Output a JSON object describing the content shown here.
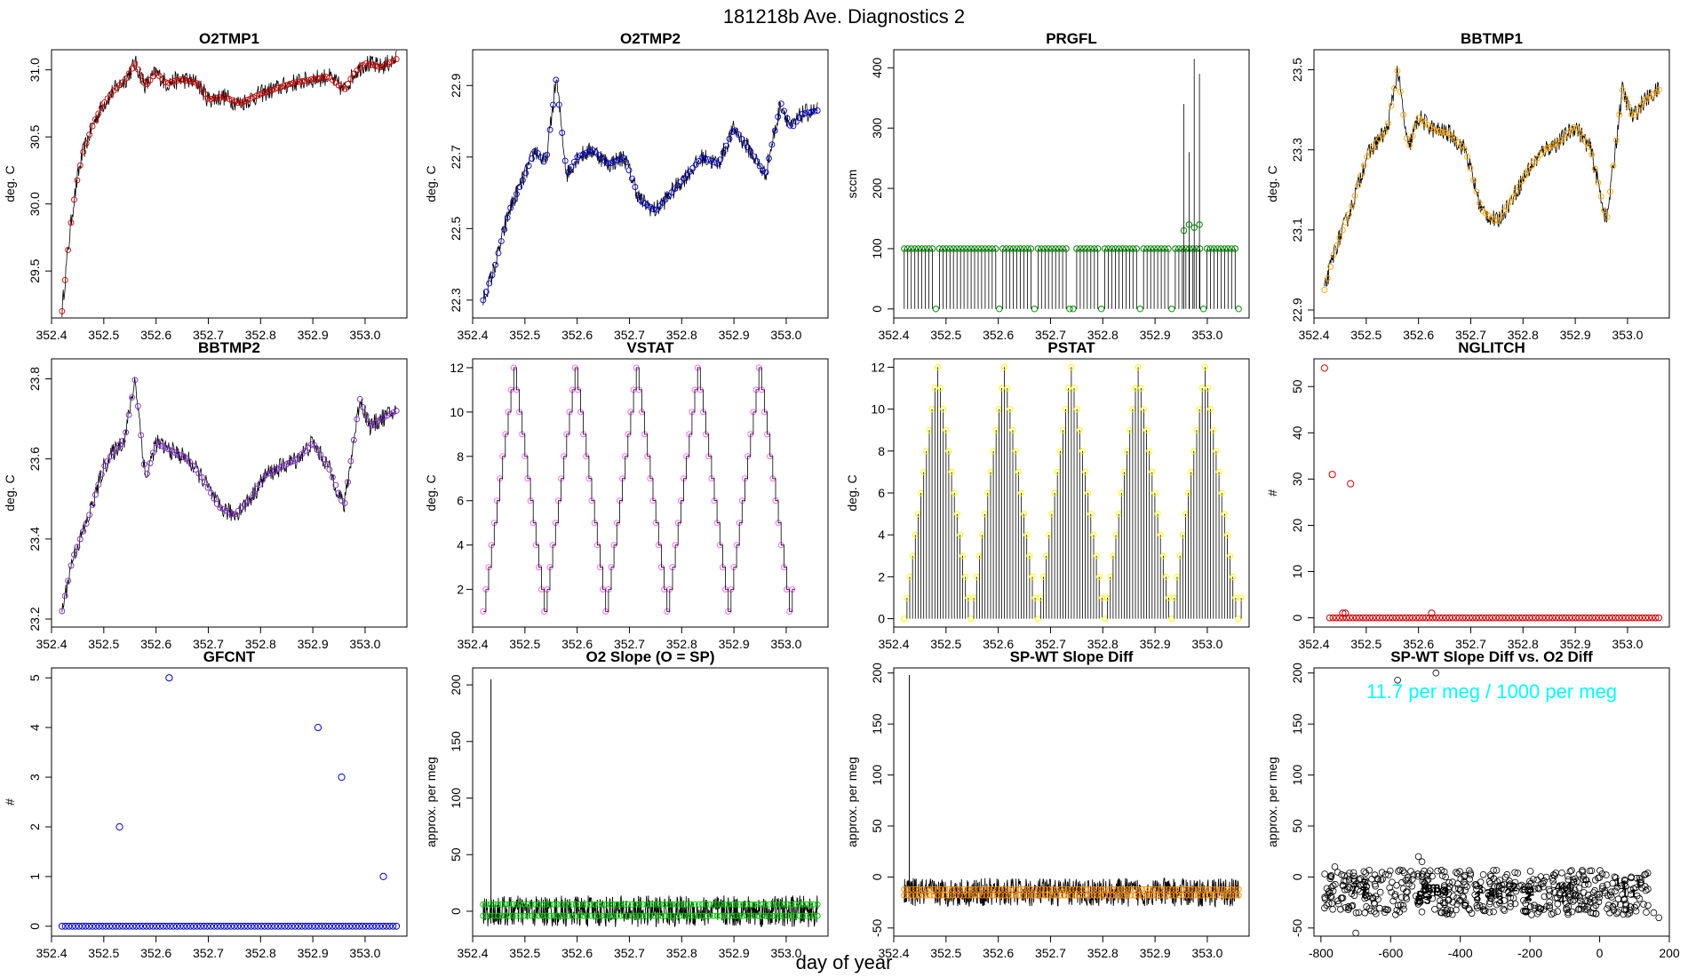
{
  "figure": {
    "title": "181218b   Ave. Diagnostics 2",
    "xlabel": "day of year"
  },
  "chart_data": [
    {
      "id": "o2tmp1",
      "type": "line",
      "title": "O2TMP1",
      "ylabel": "deg. C",
      "color": "#cc0000",
      "xlim": [
        352.4,
        353.08
      ],
      "ylim": [
        29.15,
        31.15
      ],
      "xticks": [
        352.4,
        352.5,
        352.6,
        352.7,
        352.8,
        352.9,
        353.0
      ],
      "xtick_labels": [
        "352.4",
        "352.5",
        "352.6",
        "352.7",
        "352.8",
        "352.9",
        "353.0"
      ],
      "yticks": [
        29.5,
        30.0,
        30.5,
        31.0
      ],
      "ytick_labels": [
        "29.5",
        "30.0",
        "30.5",
        "31.0"
      ],
      "ytick_rotate": true,
      "x": [
        352.42,
        352.43,
        352.44,
        352.45,
        352.46,
        352.48,
        352.5,
        352.52,
        352.54,
        352.56,
        352.58,
        352.6,
        352.62,
        352.65,
        352.68,
        352.7,
        352.73,
        352.76,
        352.8,
        352.83,
        352.86,
        352.9,
        352.93,
        352.96,
        352.98,
        353.0,
        353.03,
        353.06
      ],
      "y": [
        29.2,
        29.6,
        29.95,
        30.2,
        30.38,
        30.6,
        30.75,
        30.85,
        30.92,
        31.05,
        30.88,
        30.98,
        30.9,
        30.93,
        30.9,
        30.78,
        30.8,
        30.75,
        30.82,
        30.86,
        30.9,
        30.93,
        30.95,
        30.85,
        30.98,
        31.05,
        31.02,
        31.08
      ]
    },
    {
      "id": "o2tmp2",
      "type": "line",
      "title": "O2TMP2",
      "ylabel": "deg. C",
      "color": "#0000cc",
      "xlim": [
        352.4,
        353.08
      ],
      "ylim": [
        22.25,
        23.0
      ],
      "xticks": [
        352.4,
        352.5,
        352.6,
        352.7,
        352.8,
        352.9,
        353.0
      ],
      "xtick_labels": [
        "352.4",
        "352.5",
        "352.6",
        "352.7",
        "352.8",
        "352.9",
        "353.0"
      ],
      "yticks": [
        22.3,
        22.5,
        22.7,
        22.9
      ],
      "ytick_labels": [
        "22.3",
        "22.5",
        "22.7",
        "22.9"
      ],
      "ytick_rotate": true,
      "x": [
        352.42,
        352.44,
        352.47,
        352.5,
        352.52,
        352.54,
        352.56,
        352.58,
        352.6,
        352.63,
        352.66,
        352.69,
        352.72,
        352.75,
        352.78,
        352.81,
        352.84,
        352.87,
        352.9,
        352.93,
        352.96,
        352.99,
        353.01,
        353.03,
        353.06
      ],
      "y": [
        22.3,
        22.38,
        22.55,
        22.65,
        22.72,
        22.68,
        22.92,
        22.65,
        22.7,
        22.72,
        22.68,
        22.7,
        22.58,
        22.55,
        22.6,
        22.65,
        22.7,
        22.68,
        22.78,
        22.72,
        22.65,
        22.85,
        22.78,
        22.82,
        22.83
      ]
    },
    {
      "id": "prgfl",
      "type": "spike",
      "title": "PRGFL",
      "ylabel": "sccm",
      "color": "#008800",
      "xlim": [
        352.4,
        353.08
      ],
      "ylim": [
        -15,
        430
      ],
      "xticks": [
        352.4,
        352.5,
        352.6,
        352.7,
        352.8,
        352.9,
        353.0
      ],
      "xtick_labels": [
        "352.4",
        "352.5",
        "352.6",
        "352.7",
        "352.8",
        "352.9",
        "353.0"
      ],
      "yticks": [
        0,
        100,
        200,
        300,
        400
      ],
      "ytick_labels": [
        "0",
        "100",
        "200",
        "300",
        "400"
      ],
      "ytick_rotate": true,
      "baseline": 100,
      "dips_x": [
        352.48,
        352.6,
        352.67,
        352.74,
        352.8,
        352.87,
        352.93,
        352.99,
        353.06
      ],
      "peaks_x": [
        352.955,
        352.965,
        352.975,
        352.985
      ],
      "peaks_y": [
        340,
        260,
        415,
        390
      ],
      "peak_markers_y": [
        130,
        140,
        135,
        140
      ]
    },
    {
      "id": "bbtmp1",
      "type": "line",
      "title": "BBTMP1",
      "ylabel": "deg. C",
      "color": "#ffa500",
      "xlim": [
        352.4,
        353.08
      ],
      "ylim": [
        22.88,
        23.55
      ],
      "xticks": [
        352.4,
        352.5,
        352.6,
        352.7,
        352.8,
        352.9,
        353.0
      ],
      "xtick_labels": [
        "352.4",
        "352.5",
        "352.6",
        "352.7",
        "352.8",
        "352.9",
        "353.0"
      ],
      "yticks": [
        22.9,
        23.1,
        23.3,
        23.5
      ],
      "ytick_labels": [
        "22.9",
        "23.1",
        "23.3",
        "23.5"
      ],
      "ytick_rotate": true,
      "x": [
        352.42,
        352.44,
        352.47,
        352.5,
        352.52,
        352.54,
        352.56,
        352.58,
        352.6,
        352.63,
        352.66,
        352.69,
        352.72,
        352.75,
        352.78,
        352.81,
        352.84,
        352.87,
        352.9,
        352.93,
        352.96,
        352.99,
        353.01,
        353.03,
        353.06
      ],
      "y": [
        22.95,
        23.05,
        23.15,
        23.28,
        23.32,
        23.35,
        23.5,
        23.3,
        23.38,
        23.35,
        23.34,
        23.3,
        23.15,
        23.12,
        23.18,
        23.25,
        23.3,
        23.32,
        23.36,
        23.3,
        23.12,
        23.45,
        23.38,
        23.42,
        23.45
      ]
    },
    {
      "id": "bbtmp2",
      "type": "line",
      "title": "BBTMP2",
      "ylabel": "deg. C",
      "color": "#7b2fbe",
      "xlim": [
        352.4,
        353.08
      ],
      "ylim": [
        23.18,
        23.85
      ],
      "xticks": [
        352.4,
        352.5,
        352.6,
        352.7,
        352.8,
        352.9,
        353.0
      ],
      "xtick_labels": [
        "352.4",
        "352.5",
        "352.6",
        "352.7",
        "352.8",
        "352.9",
        "353.0"
      ],
      "yticks": [
        23.2,
        23.4,
        23.6,
        23.8
      ],
      "ytick_labels": [
        "23.2",
        "23.4",
        "23.6",
        "23.8"
      ],
      "ytick_rotate": true,
      "x": [
        352.42,
        352.44,
        352.47,
        352.5,
        352.52,
        352.54,
        352.56,
        352.58,
        352.6,
        352.63,
        352.66,
        352.69,
        352.72,
        352.75,
        352.78,
        352.81,
        352.84,
        352.87,
        352.9,
        352.93,
        352.96,
        352.99,
        353.01,
        353.03,
        353.06
      ],
      "y": [
        23.22,
        23.35,
        23.45,
        23.58,
        23.62,
        23.65,
        23.8,
        23.55,
        23.64,
        23.62,
        23.6,
        23.55,
        23.48,
        23.46,
        23.5,
        23.56,
        23.58,
        23.6,
        23.64,
        23.58,
        23.48,
        23.75,
        23.68,
        23.7,
        23.72
      ]
    },
    {
      "id": "vstat",
      "type": "step",
      "title": "VSTAT",
      "ylabel": "deg. C",
      "color": "#ff66ff",
      "xlim": [
        352.4,
        353.08
      ],
      "ylim": [
        0.3,
        12.4
      ],
      "xticks": [
        352.4,
        352.5,
        352.6,
        352.7,
        352.8,
        352.9,
        353.0
      ],
      "xtick_labels": [
        "352.4",
        "352.5",
        "352.6",
        "352.7",
        "352.8",
        "352.9",
        "353.0"
      ],
      "yticks": [
        2,
        4,
        6,
        8,
        10,
        12
      ],
      "ytick_labels": [
        "2",
        "4",
        "6",
        "8",
        "10",
        "12"
      ],
      "ytick_rotate": false,
      "start": 352.42,
      "step": 0.00533,
      "min": 1,
      "max": 12,
      "cycles": 5
    },
    {
      "id": "pstat",
      "type": "spike-triangle",
      "title": "PSTAT",
      "ylabel": "deg. C",
      "color": "#ffff00",
      "xlim": [
        352.4,
        353.08
      ],
      "ylim": [
        -0.4,
        12.4
      ],
      "xticks": [
        352.4,
        352.5,
        352.6,
        352.7,
        352.8,
        352.9,
        353.0
      ],
      "xtick_labels": [
        "352.4",
        "352.5",
        "352.6",
        "352.7",
        "352.8",
        "352.9",
        "353.0"
      ],
      "yticks": [
        0,
        2,
        4,
        6,
        8,
        10,
        12
      ],
      "ytick_labels": [
        "0",
        "2",
        "4",
        "6",
        "8",
        "10",
        "12"
      ],
      "ytick_rotate": false,
      "start": 352.42,
      "step": 0.00533,
      "min": 0,
      "max": 12,
      "cycles": 5
    },
    {
      "id": "nglitch",
      "type": "scatter",
      "title": "NGLITCH",
      "ylabel": "#",
      "color": "#cc0000",
      "xlim": [
        352.4,
        353.08
      ],
      "ylim": [
        -2,
        56
      ],
      "xticks": [
        352.4,
        352.5,
        352.6,
        352.7,
        352.8,
        352.9,
        353.0
      ],
      "xtick_labels": [
        "352.4",
        "352.5",
        "352.6",
        "352.7",
        "352.8",
        "352.9",
        "353.0"
      ],
      "yticks": [
        0,
        10,
        20,
        30,
        40,
        50
      ],
      "ytick_labels": [
        "0",
        "10",
        "20",
        "30",
        "40",
        "50"
      ],
      "ytick_rotate": true,
      "x": [
        352.42,
        352.435,
        352.455,
        352.47,
        352.46,
        352.625
      ],
      "y": [
        54,
        31,
        1,
        29,
        1,
        1
      ],
      "zero_series": {
        "start": 352.43,
        "end": 353.06,
        "count": 100
      }
    },
    {
      "id": "gfcnt",
      "type": "scatter",
      "title": "GFCNT",
      "ylabel": "#",
      "color": "#0000cc",
      "xlim": [
        352.4,
        353.08
      ],
      "ylim": [
        -0.2,
        5.2
      ],
      "xticks": [
        352.4,
        352.5,
        352.6,
        352.7,
        352.8,
        352.9,
        353.0
      ],
      "xtick_labels": [
        "352.4",
        "352.5",
        "352.6",
        "352.7",
        "352.8",
        "352.9",
        "353.0"
      ],
      "yticks": [
        0,
        1,
        2,
        3,
        4,
        5
      ],
      "ytick_labels": [
        "0",
        "1",
        "2",
        "3",
        "4",
        "5"
      ],
      "ytick_rotate": true,
      "x": [
        352.53,
        352.625,
        352.91,
        352.955,
        353.035
      ],
      "y": [
        2,
        5,
        4,
        3,
        1
      ],
      "zero_series": {
        "start": 352.42,
        "end": 353.06,
        "count": 100
      }
    },
    {
      "id": "o2slope",
      "type": "band",
      "title": "O2 Slope (O = SP)",
      "ylabel": "approx. per meg",
      "color": "#00cc00",
      "xlim": [
        352.4,
        353.08
      ],
      "ylim": [
        -22,
        215
      ],
      "xticks": [
        352.4,
        352.5,
        352.6,
        352.7,
        352.8,
        352.9,
        353.0
      ],
      "xtick_labels": [
        "352.4",
        "352.5",
        "352.6",
        "352.7",
        "352.8",
        "352.9",
        "353.0"
      ],
      "yticks": [
        0,
        50,
        100,
        150,
        200
      ],
      "ytick_labels": [
        "0",
        "50",
        "100",
        "150",
        "200"
      ],
      "ytick_rotate": true,
      "center": 0,
      "upper_marker": 6,
      "lower_marker": -4,
      "spike_x": 352.435,
      "spike_y": 205
    },
    {
      "id": "spwt",
      "type": "band",
      "title": "SP-WT Slope Diff",
      "ylabel": "approx. per meg",
      "color": "#ff8c00",
      "xlim": [
        352.4,
        353.08
      ],
      "ylim": [
        -58,
        205
      ],
      "xticks": [
        352.4,
        352.5,
        352.6,
        352.7,
        352.8,
        352.9,
        353.0
      ],
      "xtick_labels": [
        "352.4",
        "352.5",
        "352.6",
        "352.7",
        "352.8",
        "352.9",
        "353.0"
      ],
      "yticks": [
        -50,
        0,
        50,
        100,
        150,
        200
      ],
      "ytick_labels": [
        "-50",
        "0",
        "50",
        "100",
        "150",
        "200"
      ],
      "ytick_rotate": true,
      "center": -15,
      "upper_marker": -12,
      "lower_marker": -18,
      "spike_x": 352.43,
      "spike_y": 198
    },
    {
      "id": "spwt_vs_o2",
      "type": "scatter-cloud",
      "title": "SP-WT Slope Diff vs. O2 Diff",
      "ylabel": "approx. per meg",
      "color": "#00ffff",
      "annotation": "11.7 per meg / 1000 per meg",
      "xlim": [
        -820,
        200
      ],
      "ylim": [
        -58,
        205
      ],
      "xticks": [
        -800,
        -600,
        -400,
        -200,
        0,
        200
      ],
      "xtick_labels": [
        "-800",
        "-600",
        "-400",
        "-200",
        "0",
        "200"
      ],
      "yticks": [
        -50,
        0,
        50,
        100,
        150,
        200
      ],
      "ytick_labels": [
        "-50",
        "0",
        "50",
        "100",
        "150",
        "200"
      ],
      "ytick_rotate": true,
      "outliers_x": [
        -580,
        -470,
        -520,
        -510,
        -760,
        -730,
        155,
        170,
        -700
      ],
      "outliers_y": [
        193,
        200,
        20,
        15,
        10,
        -30,
        -35,
        -40,
        -55
      ],
      "clusters": [
        {
          "x": -700,
          "y": -15,
          "label": "7"
        },
        {
          "x": -480,
          "y": -20,
          "label": "B3"
        },
        {
          "x": -320,
          "y": -20,
          "label": "3"
        },
        {
          "x": -230,
          "y": -20,
          "label": "2"
        },
        {
          "x": -110,
          "y": -20,
          "label": "4"
        },
        {
          "x": 80,
          "y": -15,
          "label": "1"
        }
      ]
    }
  ]
}
